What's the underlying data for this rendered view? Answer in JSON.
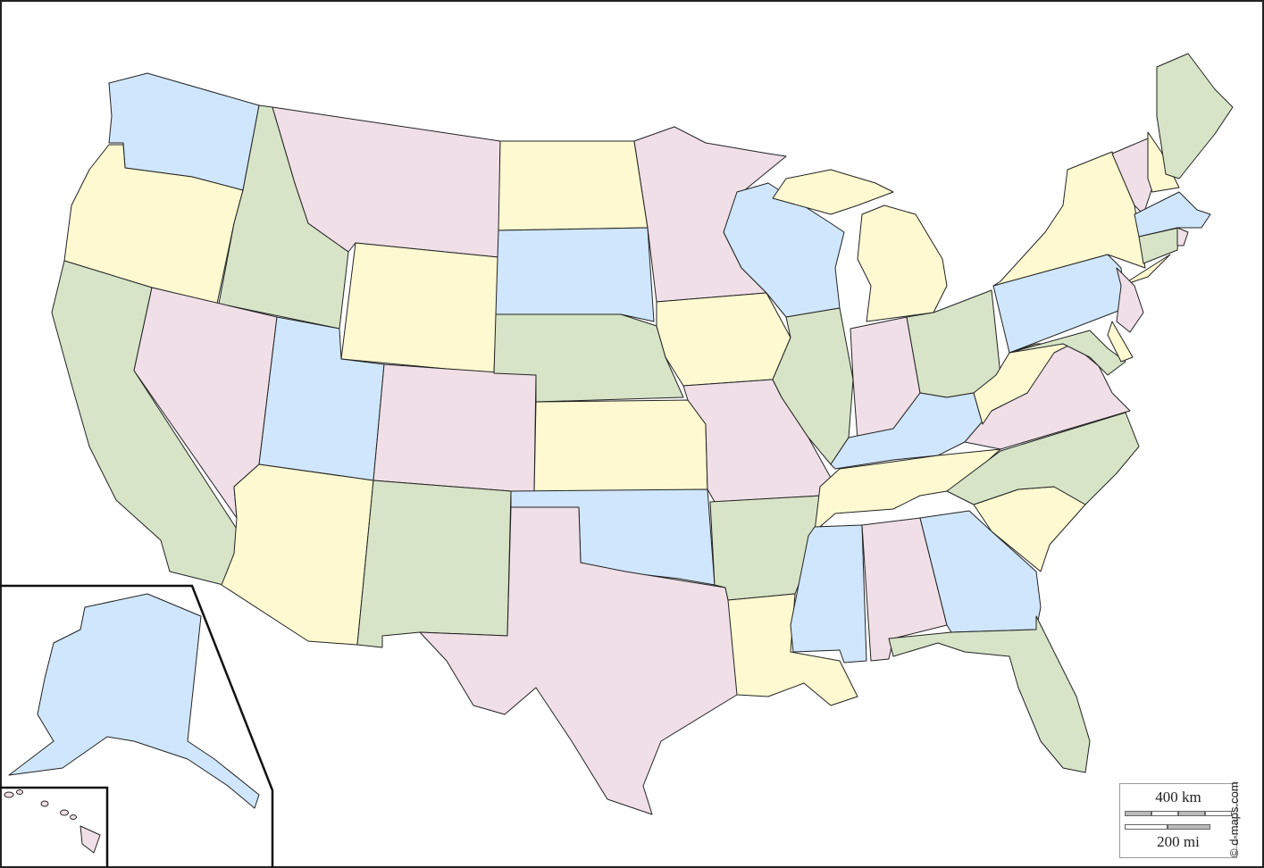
{
  "palette": {
    "blue": "#cfe6fc",
    "yellow": "#fef9d0",
    "pink": "#f0dfe7",
    "green": "#d7e4c7",
    "border": "#222222"
  },
  "states": [
    {
      "id": "WA",
      "color": "blue"
    },
    {
      "id": "OR",
      "color": "yellow"
    },
    {
      "id": "CA",
      "color": "green"
    },
    {
      "id": "ID",
      "color": "green"
    },
    {
      "id": "NV",
      "color": "pink"
    },
    {
      "id": "MT",
      "color": "pink"
    },
    {
      "id": "WY",
      "color": "yellow"
    },
    {
      "id": "UT",
      "color": "blue"
    },
    {
      "id": "AZ",
      "color": "yellow"
    },
    {
      "id": "CO",
      "color": "pink"
    },
    {
      "id": "NM",
      "color": "green"
    },
    {
      "id": "ND",
      "color": "yellow"
    },
    {
      "id": "SD",
      "color": "blue"
    },
    {
      "id": "NE",
      "color": "green"
    },
    {
      "id": "KS",
      "color": "yellow"
    },
    {
      "id": "OK",
      "color": "blue"
    },
    {
      "id": "TX",
      "color": "pink"
    },
    {
      "id": "MN",
      "color": "pink"
    },
    {
      "id": "IA",
      "color": "yellow"
    },
    {
      "id": "MO",
      "color": "pink"
    },
    {
      "id": "AR",
      "color": "green"
    },
    {
      "id": "LA",
      "color": "yellow"
    },
    {
      "id": "WI",
      "color": "blue"
    },
    {
      "id": "IL",
      "color": "green"
    },
    {
      "id": "MI",
      "color": "yellow"
    },
    {
      "id": "MI-UP",
      "color": "yellow"
    },
    {
      "id": "IN",
      "color": "pink"
    },
    {
      "id": "OH",
      "color": "green"
    },
    {
      "id": "KY",
      "color": "blue"
    },
    {
      "id": "TN",
      "color": "yellow"
    },
    {
      "id": "MS",
      "color": "blue"
    },
    {
      "id": "AL",
      "color": "pink"
    },
    {
      "id": "GA",
      "color": "blue"
    },
    {
      "id": "FL",
      "color": "green"
    },
    {
      "id": "SC",
      "color": "yellow"
    },
    {
      "id": "NC",
      "color": "green"
    },
    {
      "id": "VA",
      "color": "pink"
    },
    {
      "id": "WV",
      "color": "yellow"
    },
    {
      "id": "PA",
      "color": "blue"
    },
    {
      "id": "NY",
      "color": "yellow"
    },
    {
      "id": "NY-LI",
      "color": "yellow"
    },
    {
      "id": "MD",
      "color": "green"
    },
    {
      "id": "DE",
      "color": "yellow"
    },
    {
      "id": "NJ",
      "color": "pink"
    },
    {
      "id": "VT",
      "color": "pink"
    },
    {
      "id": "NH",
      "color": "yellow"
    },
    {
      "id": "ME",
      "color": "green"
    },
    {
      "id": "MA",
      "color": "blue"
    },
    {
      "id": "CT",
      "color": "green"
    },
    {
      "id": "RI",
      "color": "pink"
    },
    {
      "id": "AK",
      "color": "blue"
    },
    {
      "id": "HI",
      "color": "pink"
    }
  ],
  "scale": {
    "km_label": "400 km",
    "mi_label": "200 mi"
  },
  "credit": "© d-maps.com"
}
